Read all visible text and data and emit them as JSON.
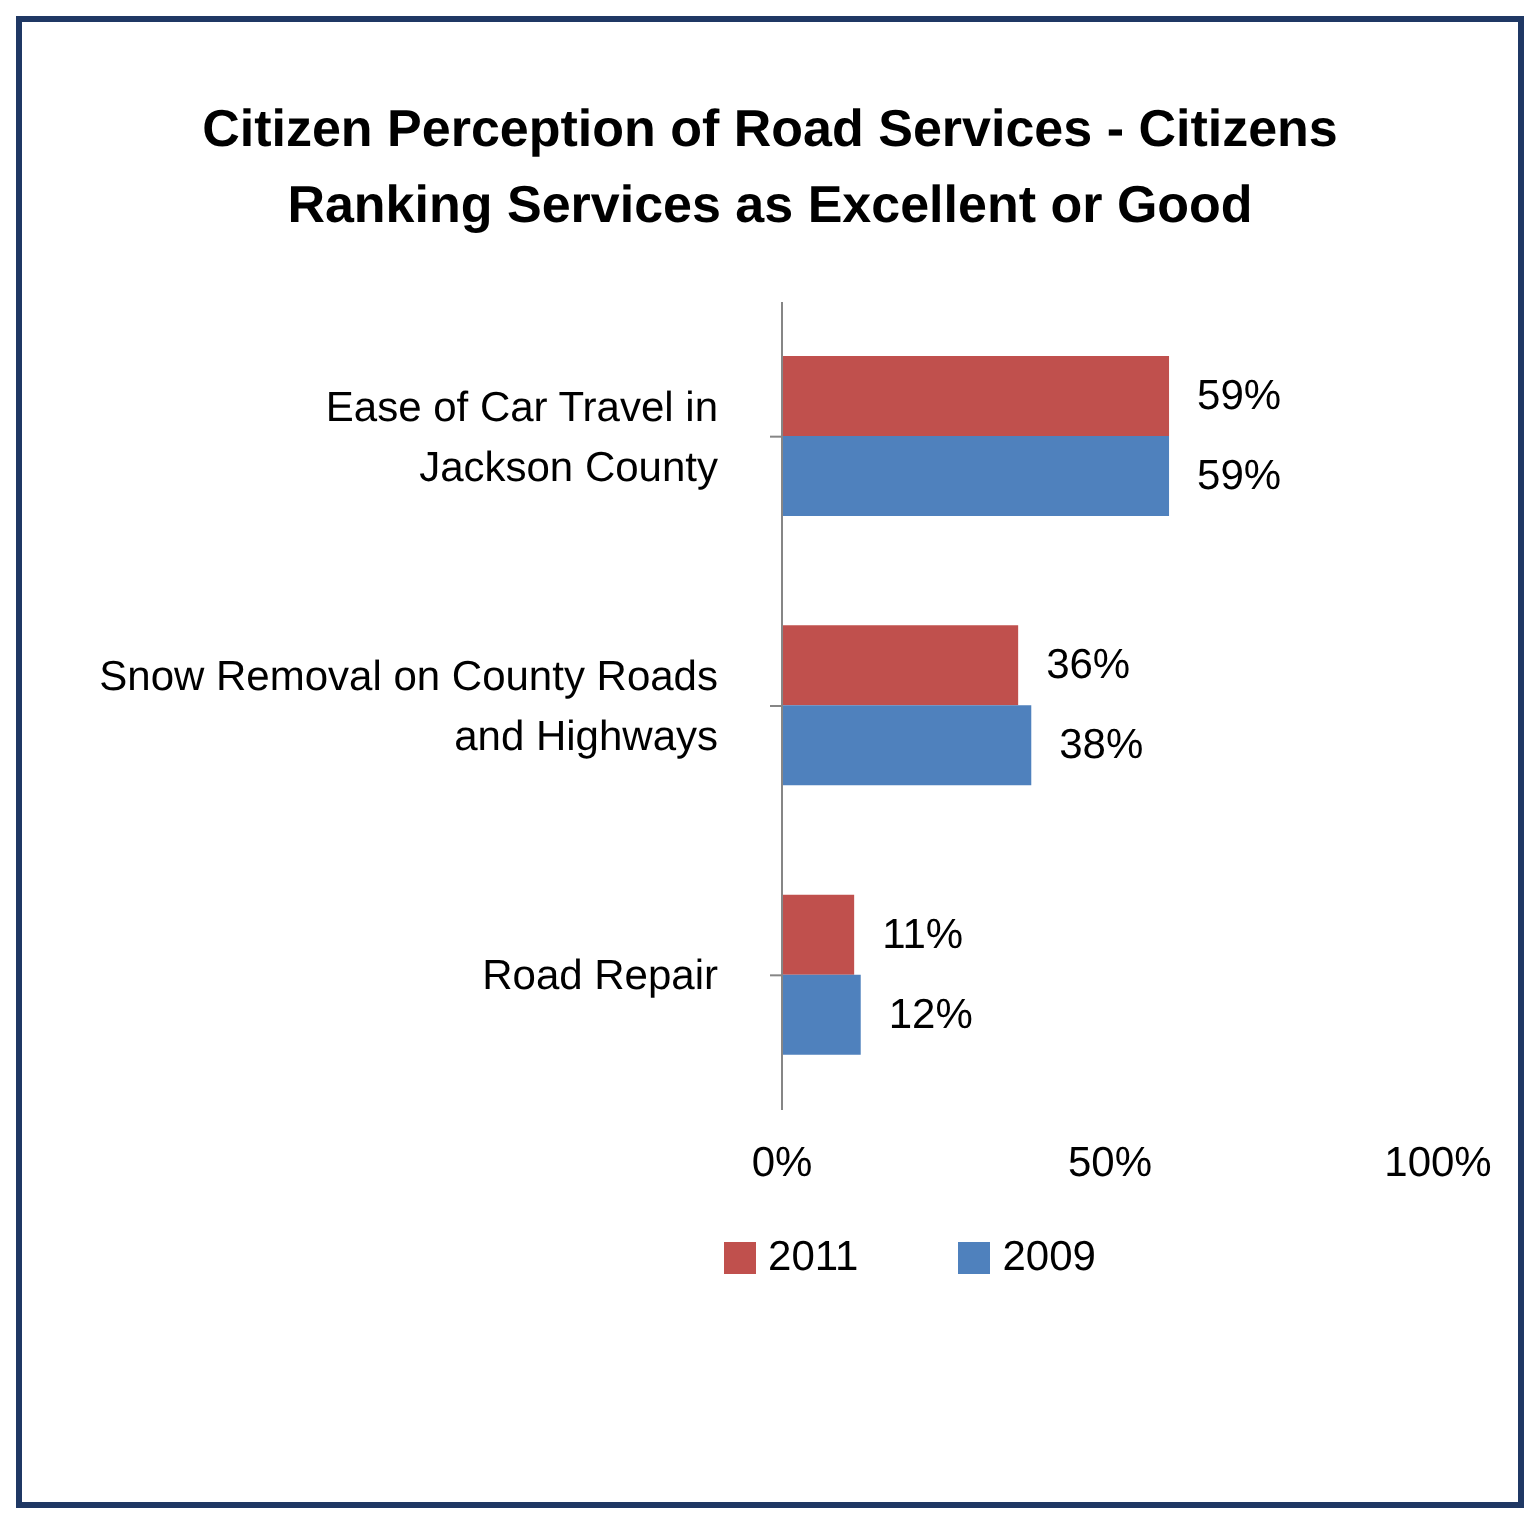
{
  "chart_data": {
    "type": "bar",
    "orientation": "horizontal",
    "title": "Citizen Perception of Road Services - Citizens Ranking Services as Excellent or Good",
    "categories": [
      "Ease of Car Travel in Jackson County",
      "Snow Removal on County Roads and Highways",
      "Road Repair"
    ],
    "series": [
      {
        "name": "2011",
        "color": "#c0504d",
        "values": [
          59,
          36,
          11
        ],
        "value_labels": [
          "59%",
          "36%",
          "11%"
        ]
      },
      {
        "name": "2009",
        "color": "#4f81bd",
        "values": [
          59,
          38,
          12
        ],
        "value_labels": [
          "59%",
          "38%",
          "12%"
        ]
      }
    ],
    "xlim": [
      0,
      100
    ],
    "xticks": [
      {
        "value": 0,
        "label": "0%"
      },
      {
        "value": 50,
        "label": "50%"
      },
      {
        "value": 100,
        "label": "100%"
      }
    ],
    "legend": "bottom"
  }
}
